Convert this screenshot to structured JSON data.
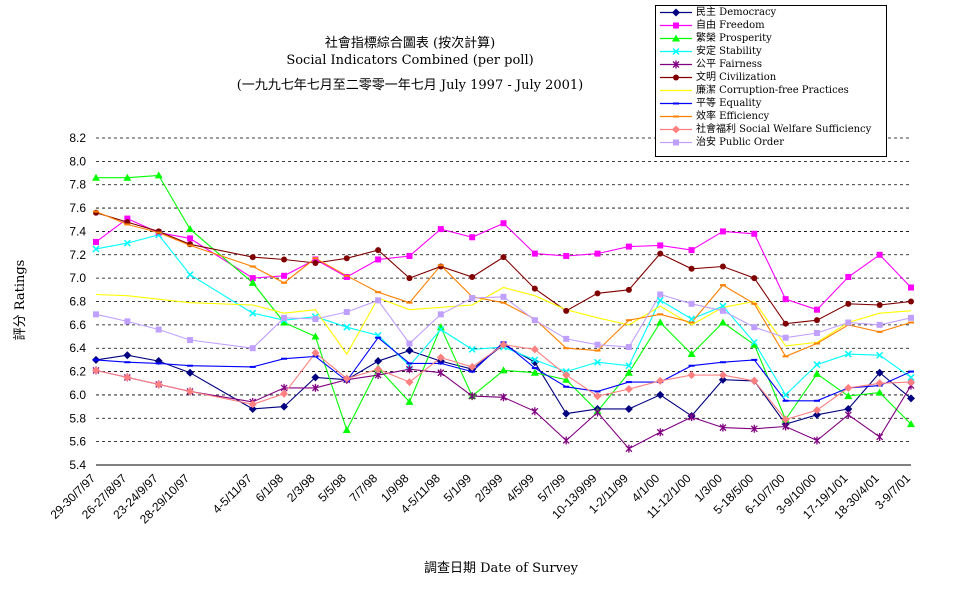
{
  "chart_data": {
    "type": "line",
    "title": "社會指標綜合圖表 (按次計算)",
    "subtitle": "Social Indicators Combined (per poll)",
    "subtitle2": "(一九九七年七月至二零零一年七月 July 1997 - July 2001)",
    "xlabel": "調查日期 Date of Survey",
    "ylabel": "評分 Ratings",
    "ylim": [
      5.4,
      8.2
    ],
    "yticks": [
      "8.2",
      "8.0",
      "7.8",
      "7.6",
      "7.4",
      "7.2",
      "7.0",
      "6.8",
      "6.6",
      "6.4",
      "6.2",
      "6.0",
      "5.8",
      "5.6",
      "5.4"
    ],
    "grid": "horizontal dashed",
    "legend_position": "top-right",
    "categories": [
      "29-30/7/97",
      "26-27/8/97",
      "23-24/9/97",
      "28-29/10/97",
      "4-5/11/97",
      "6/1/98",
      "2/3/98",
      "5/5/98",
      "7/7/98",
      "1/9/98",
      "4-5/11/98",
      "5/1/99",
      "2/3/99",
      "4/5/99",
      "5/7/99",
      "10-13/9/99",
      "1-2/11/99",
      "4/1/00",
      "11-12/1/00",
      "1/3/00",
      "5-18/5/00",
      "6-10/7/00",
      "3-9/10/00",
      "17-19/1/01",
      "18-30/4/01",
      "3-9/7/01"
    ],
    "x": [
      0,
      1,
      2,
      3,
      5,
      6,
      7,
      8,
      9,
      10,
      11,
      12,
      13,
      14,
      15,
      16,
      17,
      18,
      19,
      20,
      21,
      22,
      23,
      24,
      25,
      26
    ],
    "series": [
      {
        "name": "民主 Democracy",
        "color": "#000080",
        "marker": "diamond",
        "values": [
          6.3,
          6.34,
          6.29,
          6.19,
          5.88,
          5.9,
          6.15,
          6.13,
          6.29,
          6.38,
          6.29,
          6.22,
          6.43,
          6.28,
          5.84,
          5.88,
          5.88,
          6.0,
          5.82,
          6.13,
          6.12,
          5.75,
          5.83,
          5.88,
          6.19,
          5.97
        ]
      },
      {
        "name": "自由 Freedom",
        "color": "#ff00ff",
        "marker": "square",
        "values": [
          7.31,
          7.51,
          7.39,
          7.34,
          7.0,
          7.02,
          7.16,
          7.01,
          7.16,
          7.19,
          7.42,
          7.35,
          7.47,
          7.21,
          7.19,
          7.21,
          7.27,
          7.28,
          7.24,
          7.4,
          7.38,
          6.82,
          6.73,
          7.01,
          7.2,
          6.92
        ]
      },
      {
        "name": "繁榮 Prosperity",
        "color": "#00ff00",
        "marker": "triangle",
        "values": [
          7.86,
          7.86,
          7.88,
          7.42,
          6.96,
          6.62,
          6.5,
          5.7,
          6.23,
          5.94,
          6.58,
          5.99,
          6.21,
          6.19,
          6.13,
          5.86,
          6.19,
          6.62,
          6.35,
          6.62,
          6.43,
          5.79,
          6.18,
          5.99,
          6.02,
          5.75
        ]
      },
      {
        "name": "安定 Stability",
        "color": "#00ffff",
        "marker": "x",
        "values": [
          7.25,
          7.3,
          7.37,
          7.03,
          6.7,
          6.64,
          6.67,
          6.58,
          6.51,
          6.25,
          6.56,
          6.39,
          6.41,
          6.3,
          6.2,
          6.28,
          6.25,
          6.81,
          6.65,
          6.76,
          6.45,
          6.0,
          6.26,
          6.35,
          6.34,
          6.15
        ]
      },
      {
        "name": "公平 Fairness",
        "color": "#800080",
        "marker": "star",
        "values": [
          6.21,
          6.15,
          6.09,
          6.03,
          5.94,
          6.06,
          6.06,
          6.13,
          6.17,
          6.22,
          6.19,
          5.99,
          5.98,
          5.86,
          5.61,
          5.85,
          5.54,
          5.68,
          5.81,
          5.72,
          5.71,
          5.73,
          5.61,
          5.83,
          5.64,
          6.08
        ]
      },
      {
        "name": "文明 Civilization",
        "color": "#800000",
        "marker": "circle",
        "values": [
          7.56,
          7.48,
          7.4,
          7.29,
          7.18,
          7.16,
          7.13,
          7.17,
          7.24,
          7.0,
          7.1,
          7.01,
          7.18,
          6.91,
          6.72,
          6.87,
          6.9,
          7.21,
          7.08,
          7.1,
          7.0,
          6.61,
          6.64,
          6.78,
          6.77,
          6.8
        ]
      },
      {
        "name": "廉潔 Corruption-free Practices",
        "color": "#ffff00",
        "marker": "none",
        "values": [
          6.86,
          6.85,
          6.82,
          6.79,
          6.77,
          6.7,
          6.73,
          6.35,
          6.83,
          6.73,
          6.75,
          6.77,
          6.92,
          6.85,
          6.73,
          6.66,
          6.6,
          6.76,
          6.6,
          6.75,
          6.8,
          6.42,
          6.45,
          6.62,
          6.7,
          6.72
        ]
      },
      {
        "name": "平等 Equality",
        "color": "#0000ff",
        "marker": "bar",
        "values": [
          6.3,
          6.28,
          6.27,
          6.25,
          6.24,
          6.31,
          6.33,
          6.12,
          6.49,
          6.27,
          6.27,
          6.2,
          6.45,
          6.23,
          6.07,
          6.03,
          6.11,
          6.11,
          6.25,
          6.28,
          6.3,
          5.95,
          5.95,
          6.06,
          6.08,
          6.2
        ]
      },
      {
        "name": "效率 Efficiency",
        "color": "#ff8000",
        "marker": "bar",
        "values": [
          7.57,
          7.46,
          7.39,
          7.28,
          7.1,
          6.96,
          7.17,
          7.02,
          6.88,
          6.79,
          7.11,
          6.84,
          6.79,
          6.65,
          6.4,
          6.38,
          6.64,
          6.69,
          6.62,
          6.94,
          6.78,
          6.33,
          6.44,
          6.6,
          6.54,
          6.62
        ]
      },
      {
        "name": "社會福利 Social Welfare Sufficiency",
        "color": "#ff8080",
        "marker": "diamond",
        "values": [
          6.21,
          6.15,
          6.09,
          6.03,
          5.92,
          6.01,
          6.36,
          6.14,
          6.22,
          6.11,
          6.32,
          6.24,
          6.43,
          6.39,
          6.17,
          5.99,
          6.05,
          6.12,
          6.17,
          6.17,
          6.12,
          5.79,
          5.87,
          6.06,
          6.1,
          6.11
        ]
      },
      {
        "name": "治安 Public Order",
        "color": "#c0a0ff",
        "marker": "square",
        "values": [
          6.69,
          6.63,
          6.56,
          6.47,
          6.4,
          6.66,
          6.65,
          6.71,
          6.81,
          6.44,
          6.69,
          6.83,
          6.84,
          6.64,
          6.48,
          6.43,
          6.41,
          6.86,
          6.78,
          6.72,
          6.58,
          6.49,
          6.53,
          6.62,
          6.6,
          6.66
        ]
      }
    ]
  }
}
